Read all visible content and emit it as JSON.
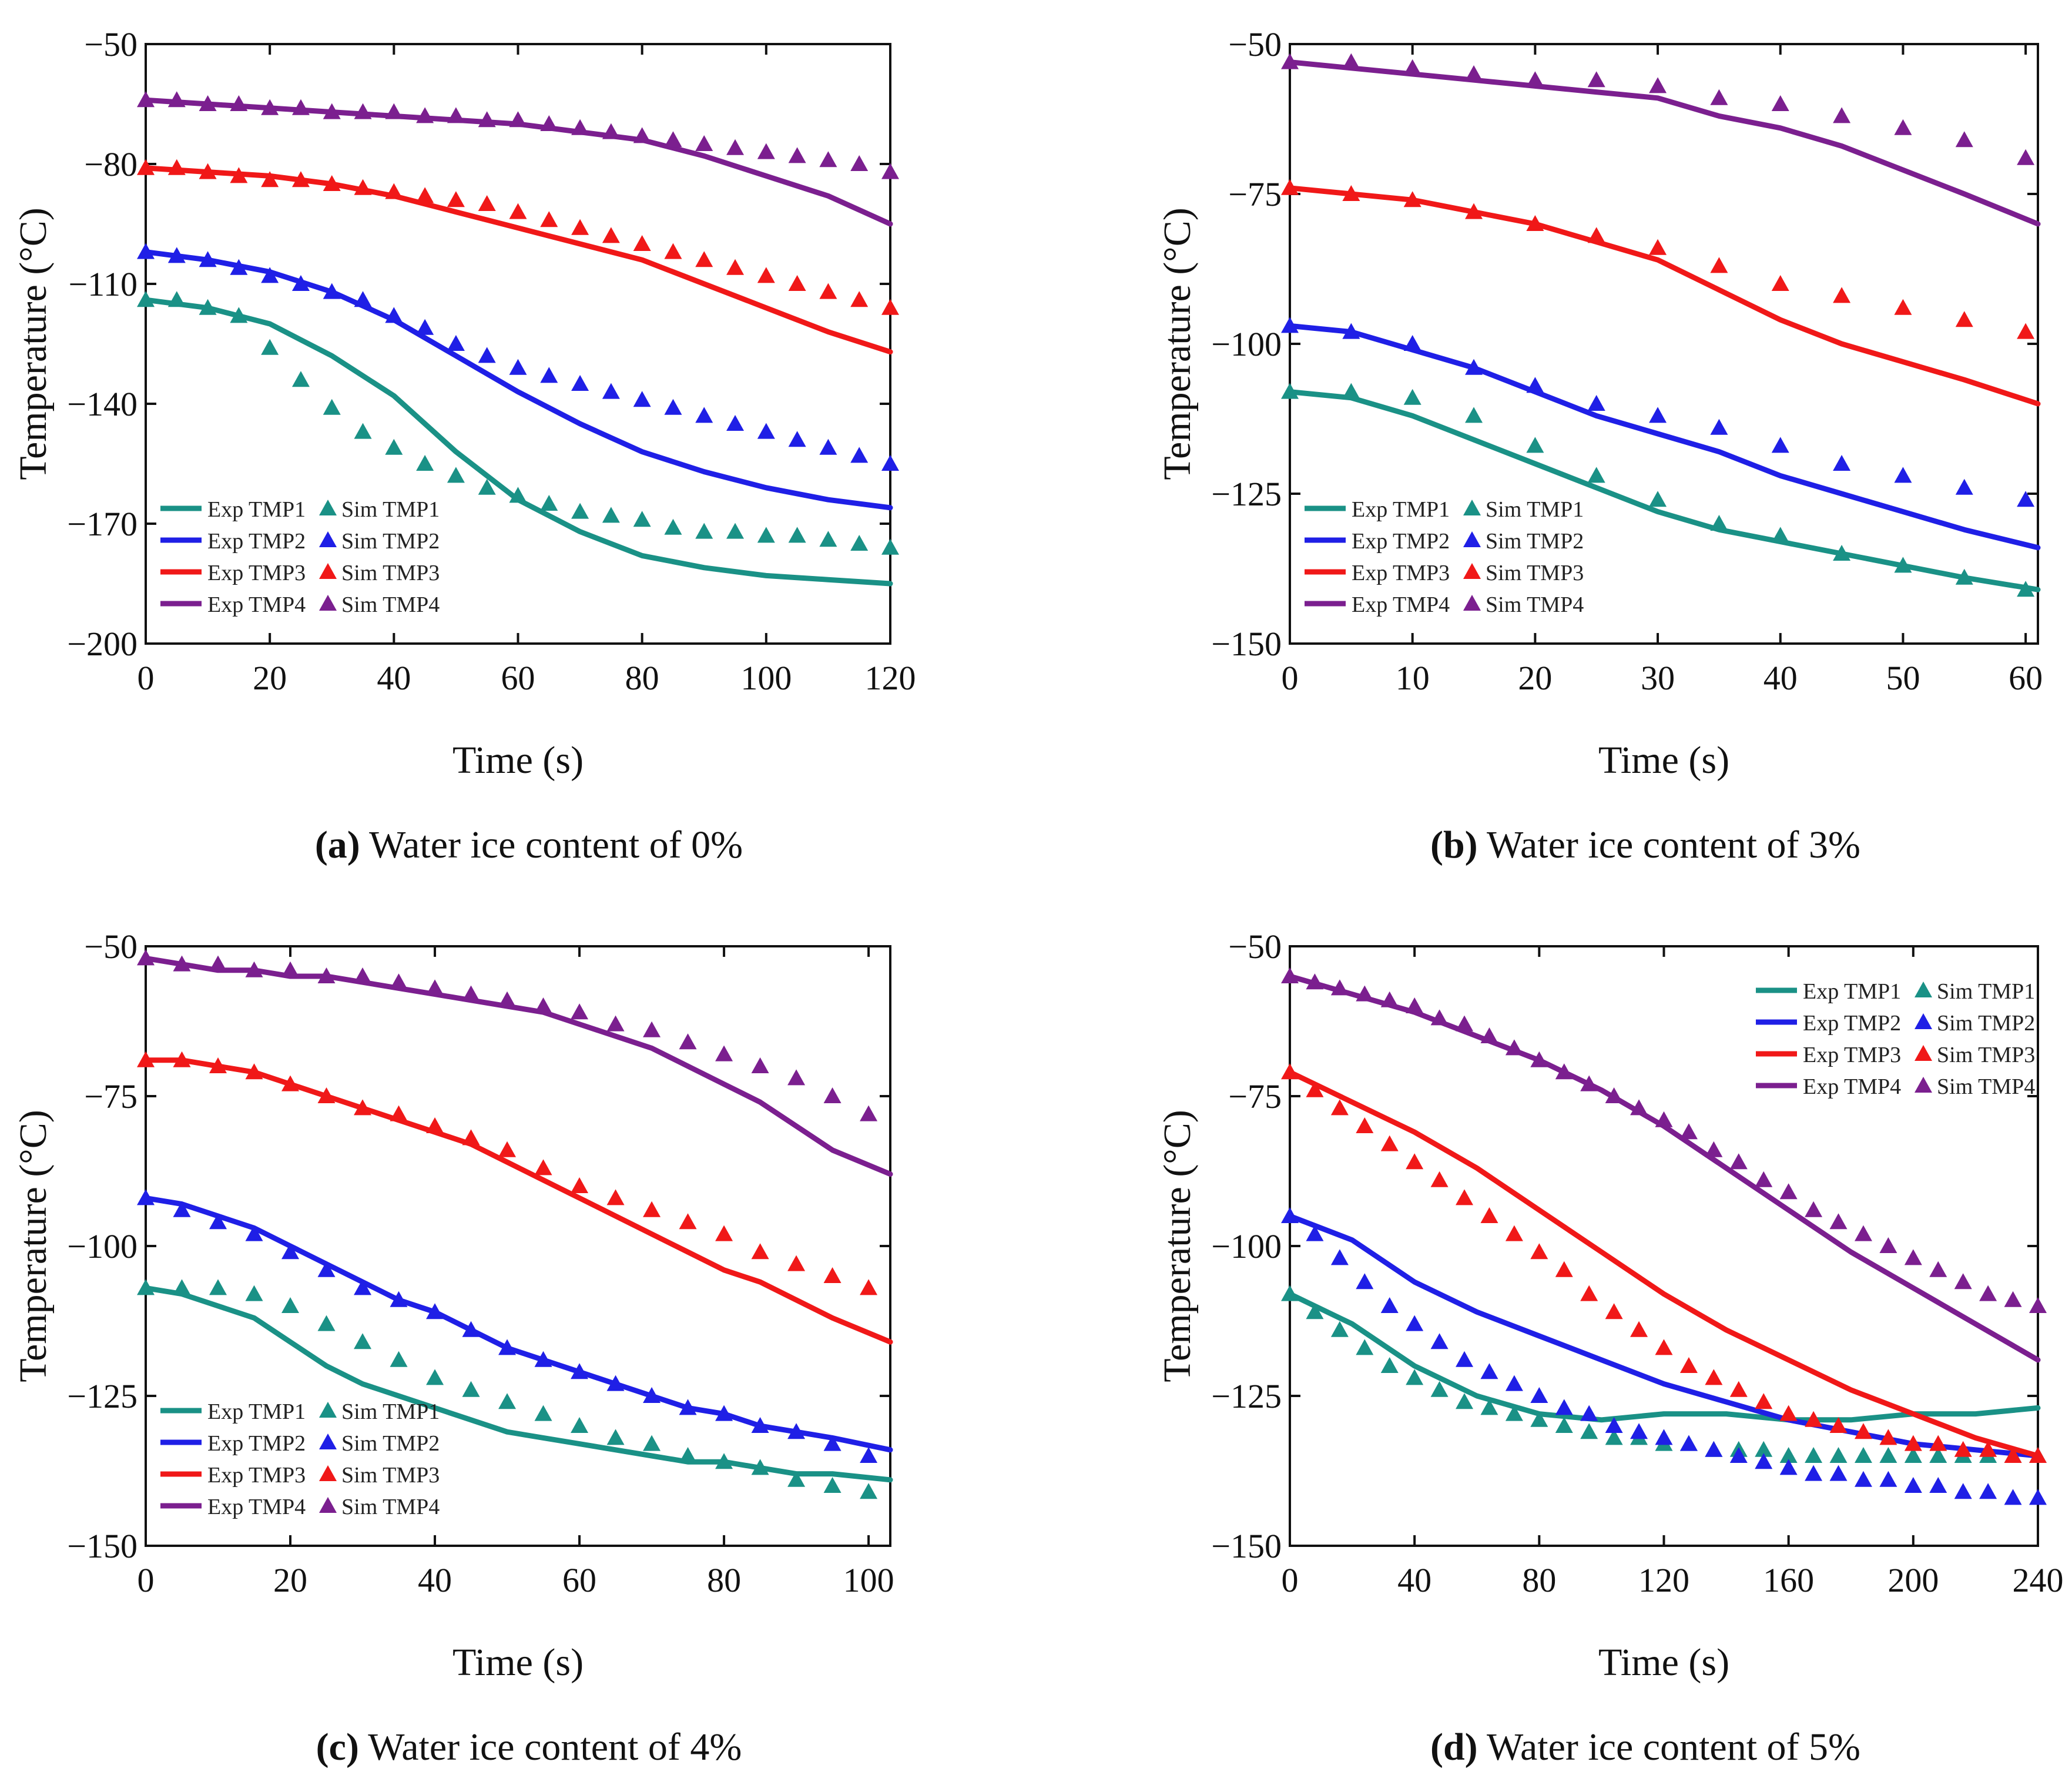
{
  "colors": {
    "TMP1": "#1a9186",
    "TMP2": "#1f1fe6",
    "TMP3": "#f01818",
    "TMP4": "#7b1f8f"
  },
  "legend_labels": {
    "exp": [
      "Exp TMP1",
      "Exp TMP2",
      "Exp TMP3",
      "Exp TMP4"
    ],
    "sim": [
      "Sim TMP1",
      "Sim TMP2",
      "Sim TMP3",
      "Sim TMP4"
    ]
  },
  "chart_data": [
    {
      "id": "a",
      "type": "line",
      "title": "",
      "caption_letter": "(a)",
      "caption_text": " Water ice content of 0%",
      "xlabel": "Time (s)",
      "ylabel": "Temperature (°C)",
      "xlim": [
        0,
        120
      ],
      "ylim": [
        -200,
        -50
      ],
      "xticks": [
        0,
        20,
        40,
        60,
        80,
        100,
        120
      ],
      "yticks": [
        -200,
        -170,
        -140,
        -110,
        -80,
        -50
      ],
      "xtick_labels": [
        "0",
        "20",
        "40",
        "60",
        "80",
        "100",
        "120"
      ],
      "ytick_labels": [
        "−200",
        "−170",
        "−140",
        "−110",
        "−80",
        "−50"
      ],
      "legend_position": "bottom-left",
      "exp": {
        "x": [
          0,
          10,
          20,
          30,
          40,
          50,
          60,
          70,
          80,
          90,
          100,
          110,
          120
        ],
        "TMP1": [
          -114,
          -116,
          -120,
          -128,
          -138,
          -152,
          -164,
          -172,
          -178,
          -181,
          -183,
          -184,
          -185
        ],
        "TMP2": [
          -102,
          -104,
          -107,
          -112,
          -119,
          -128,
          -137,
          -145,
          -152,
          -157,
          -161,
          -164,
          -166
        ],
        "TMP3": [
          -81,
          -82,
          -83,
          -85,
          -88,
          -92,
          -96,
          -100,
          -104,
          -110,
          -116,
          -122,
          -127
        ],
        "TMP4": [
          -64,
          -65,
          -66,
          -67,
          -68,
          -69,
          -70,
          -72,
          -74,
          -78,
          -83,
          -88,
          -95
        ]
      },
      "sim": {
        "x": [
          0,
          5,
          10,
          15,
          20,
          25,
          30,
          35,
          40,
          45,
          50,
          55,
          60,
          65,
          70,
          75,
          80,
          85,
          90,
          95,
          100,
          105,
          110,
          115,
          120
        ],
        "TMP1": [
          -114,
          -114,
          -116,
          -118,
          -126,
          -134,
          -141,
          -147,
          -151,
          -155,
          -158,
          -161,
          -163,
          -165,
          -167,
          -168,
          -169,
          -171,
          -172,
          -172,
          -173,
          -173,
          -174,
          -175,
          -176
        ],
        "TMP2": [
          -102,
          -103,
          -104,
          -106,
          -108,
          -110,
          -112,
          -114,
          -118,
          -121,
          -125,
          -128,
          -131,
          -133,
          -135,
          -137,
          -139,
          -141,
          -143,
          -145,
          -147,
          -149,
          -151,
          -153,
          -155
        ],
        "TMP3": [
          -81,
          -81,
          -82,
          -83,
          -84,
          -84,
          -85,
          -86,
          -87,
          -88,
          -89,
          -90,
          -92,
          -94,
          -96,
          -98,
          -100,
          -102,
          -104,
          -106,
          -108,
          -110,
          -112,
          -114,
          -116
        ],
        "TMP4": [
          -64,
          -64,
          -65,
          -65,
          -66,
          -66,
          -67,
          -67,
          -67,
          -68,
          -68,
          -69,
          -69,
          -70,
          -71,
          -72,
          -73,
          -74,
          -75,
          -76,
          -77,
          -78,
          -79,
          -80,
          -82
        ]
      }
    },
    {
      "id": "b",
      "type": "line",
      "title": "",
      "caption_letter": "(b)",
      "caption_text": " Water ice content of 3%",
      "xlabel": "Time (s)",
      "ylabel": "Temperature (°C)",
      "xlim": [
        0,
        61
      ],
      "ylim": [
        -150,
        -50
      ],
      "xticks": [
        0,
        10,
        20,
        30,
        40,
        50,
        60
      ],
      "yticks": [
        -150,
        -125,
        -100,
        -75,
        -50
      ],
      "xtick_labels": [
        "0",
        "10",
        "20",
        "30",
        "40",
        "50",
        "60"
      ],
      "ytick_labels": [
        "−150",
        "−125",
        "−100",
        "−75",
        "−50"
      ],
      "legend_position": "bottom-left",
      "exp": {
        "x": [
          0,
          5,
          10,
          15,
          20,
          25,
          30,
          35,
          40,
          45,
          50,
          55,
          61
        ],
        "TMP1": [
          -108,
          -109,
          -112,
          -116,
          -120,
          -124,
          -128,
          -131,
          -133,
          -135,
          -137,
          -139,
          -141
        ],
        "TMP2": [
          -97,
          -98,
          -101,
          -104,
          -108,
          -112,
          -115,
          -118,
          -122,
          -125,
          -128,
          -131,
          -134
        ],
        "TMP3": [
          -74,
          -75,
          -76,
          -78,
          -80,
          -83,
          -86,
          -91,
          -96,
          -100,
          -103,
          -106,
          -110
        ],
        "TMP4": [
          -53,
          -54,
          -55,
          -56,
          -57,
          -58,
          -59,
          -62,
          -64,
          -67,
          -71,
          -75,
          -80
        ]
      },
      "sim": {
        "x": [
          0,
          5,
          10,
          15,
          20,
          25,
          30,
          35,
          40,
          45,
          50,
          55,
          60
        ],
        "TMP1": [
          -108,
          -108,
          -109,
          -112,
          -117,
          -122,
          -126,
          -130,
          -132,
          -135,
          -137,
          -139,
          -141
        ],
        "TMP2": [
          -97,
          -98,
          -100,
          -104,
          -107,
          -110,
          -112,
          -114,
          -117,
          -120,
          -122,
          -124,
          -126
        ],
        "TMP3": [
          -74,
          -75,
          -76,
          -78,
          -80,
          -82,
          -84,
          -87,
          -90,
          -92,
          -94,
          -96,
          -98
        ],
        "TMP4": [
          -53,
          -53,
          -54,
          -55,
          -56,
          -56,
          -57,
          -59,
          -60,
          -62,
          -64,
          -66,
          -69
        ]
      }
    },
    {
      "id": "c",
      "type": "line",
      "title": "",
      "caption_letter": "(c)",
      "caption_text": " Water ice content of 4%",
      "xlabel": "Time (s)",
      "ylabel": "Temperature (°C)",
      "xlim": [
        0,
        103
      ],
      "ylim": [
        -150,
        -50
      ],
      "xticks": [
        0,
        20,
        40,
        60,
        80,
        100
      ],
      "yticks": [
        -150,
        -125,
        -100,
        -75,
        -50
      ],
      "xtick_labels": [
        "0",
        "20",
        "40",
        "60",
        "80",
        "100"
      ],
      "ytick_labels": [
        "−150",
        "−125",
        "−100",
        "−75",
        "−50"
      ],
      "legend_position": "bottom-left",
      "exp": {
        "x": [
          0,
          5,
          10,
          15,
          20,
          25,
          30,
          35,
          40,
          45,
          50,
          55,
          60,
          65,
          70,
          75,
          80,
          85,
          90,
          95,
          103
        ],
        "TMP1": [
          -107,
          -108,
          -110,
          -112,
          -116,
          -120,
          -123,
          -125,
          -127,
          -129,
          -131,
          -132,
          -133,
          -134,
          -135,
          -136,
          -136,
          -137,
          -138,
          -138,
          -139
        ],
        "TMP2": [
          -92,
          -93,
          -95,
          -97,
          -100,
          -103,
          -106,
          -109,
          -111,
          -114,
          -117,
          -119,
          -121,
          -123,
          -125,
          -127,
          -128,
          -130,
          -131,
          -132,
          -134
        ],
        "TMP3": [
          -69,
          -69,
          -70,
          -71,
          -73,
          -75,
          -77,
          -79,
          -81,
          -83,
          -86,
          -89,
          -92,
          -95,
          -98,
          -101,
          -104,
          -106,
          -109,
          -112,
          -116
        ],
        "TMP4": [
          -52,
          -53,
          -54,
          -54,
          -55,
          -55,
          -56,
          -57,
          -58,
          -59,
          -60,
          -61,
          -63,
          -65,
          -67,
          -70,
          -73,
          -76,
          -80,
          -84,
          -88
        ]
      },
      "sim": {
        "x": [
          0,
          5,
          10,
          15,
          20,
          25,
          30,
          35,
          40,
          45,
          50,
          55,
          60,
          65,
          70,
          75,
          80,
          85,
          90,
          95,
          100
        ],
        "TMP1": [
          -107,
          -107,
          -107,
          -108,
          -110,
          -113,
          -116,
          -119,
          -122,
          -124,
          -126,
          -128,
          -130,
          -132,
          -133,
          -135,
          -136,
          -137,
          -139,
          -140,
          -141
        ],
        "TMP2": [
          -92,
          -94,
          -96,
          -98,
          -101,
          -104,
          -107,
          -109,
          -111,
          -114,
          -117,
          -119,
          -121,
          -123,
          -125,
          -127,
          -128,
          -130,
          -131,
          -133,
          -135
        ],
        "TMP3": [
          -69,
          -69,
          -70,
          -71,
          -73,
          -75,
          -77,
          -78,
          -80,
          -82,
          -84,
          -87,
          -90,
          -92,
          -94,
          -96,
          -98,
          -101,
          -103,
          -105,
          -107
        ],
        "TMP4": [
          -52,
          -53,
          -53,
          -54,
          -54,
          -55,
          -55,
          -56,
          -57,
          -58,
          -59,
          -60,
          -61,
          -63,
          -64,
          -66,
          -68,
          -70,
          -72,
          -75,
          -78
        ]
      }
    },
    {
      "id": "d",
      "type": "line",
      "title": "",
      "caption_letter": "(d)",
      "caption_text": " Water ice content of 5%",
      "xlabel": "Time (s)",
      "ylabel": "Temperature (°C)",
      "xlim": [
        0,
        240
      ],
      "ylim": [
        -150,
        -50
      ],
      "xticks": [
        0,
        40,
        80,
        120,
        160,
        200,
        240
      ],
      "yticks": [
        -150,
        -125,
        -100,
        -75,
        -50
      ],
      "xtick_labels": [
        "0",
        "40",
        "80",
        "120",
        "160",
        "200",
        "240"
      ],
      "ytick_labels": [
        "−150",
        "−125",
        "−100",
        "−75",
        "−50"
      ],
      "legend_position": "top-right",
      "exp": {
        "x": [
          0,
          20,
          40,
          60,
          80,
          100,
          120,
          140,
          160,
          180,
          200,
          220,
          240
        ],
        "TMP1": [
          -108,
          -113,
          -120,
          -125,
          -128,
          -129,
          -128,
          -128,
          -129,
          -129,
          -128,
          -128,
          -127
        ],
        "TMP2": [
          -95,
          -99,
          -106,
          -111,
          -115,
          -119,
          -123,
          -126,
          -129,
          -131,
          -133,
          -134,
          -135
        ],
        "TMP3": [
          -71,
          -76,
          -81,
          -87,
          -94,
          -101,
          -108,
          -114,
          -119,
          -124,
          -128,
          -132,
          -135
        ],
        "TMP4": [
          -55,
          -58,
          -61,
          -65,
          -69,
          -74,
          -80,
          -87,
          -94,
          -101,
          -107,
          -113,
          -119
        ]
      },
      "sim": {
        "x": [
          0,
          8,
          16,
          24,
          32,
          40,
          48,
          56,
          64,
          72,
          80,
          88,
          96,
          104,
          112,
          120,
          128,
          136,
          144,
          152,
          160,
          168,
          176,
          184,
          192,
          200,
          208,
          216,
          224,
          232,
          240
        ],
        "TMP1": [
          -108,
          -111,
          -114,
          -117,
          -120,
          -122,
          -124,
          -126,
          -127,
          -128,
          -129,
          -130,
          -131,
          -132,
          -132,
          -133,
          -133,
          -134,
          -134,
          -134,
          -135,
          -135,
          -135,
          -135,
          -135,
          -135,
          -135,
          -135,
          -135,
          -135,
          -135
        ],
        "TMP2": [
          -95,
          -98,
          -102,
          -106,
          -110,
          -113,
          -116,
          -119,
          -121,
          -123,
          -125,
          -127,
          -128,
          -130,
          -131,
          -132,
          -133,
          -134,
          -135,
          -136,
          -137,
          -138,
          -138,
          -139,
          -139,
          -140,
          -140,
          -141,
          -141,
          -142,
          -142
        ],
        "TMP3": [
          -71,
          -74,
          -77,
          -80,
          -83,
          -86,
          -89,
          -92,
          -95,
          -98,
          -101,
          -104,
          -108,
          -111,
          -114,
          -117,
          -120,
          -122,
          -124,
          -126,
          -128,
          -129,
          -130,
          -131,
          -132,
          -133,
          -133,
          -134,
          -134,
          -135,
          -135
        ],
        "TMP4": [
          -55,
          -56,
          -57,
          -58,
          -59,
          -60,
          -62,
          -63,
          -65,
          -67,
          -69,
          -71,
          -73,
          -75,
          -77,
          -79,
          -81,
          -84,
          -86,
          -89,
          -91,
          -94,
          -96,
          -98,
          -100,
          -102,
          -104,
          -106,
          -108,
          -109,
          -110
        ]
      }
    }
  ]
}
